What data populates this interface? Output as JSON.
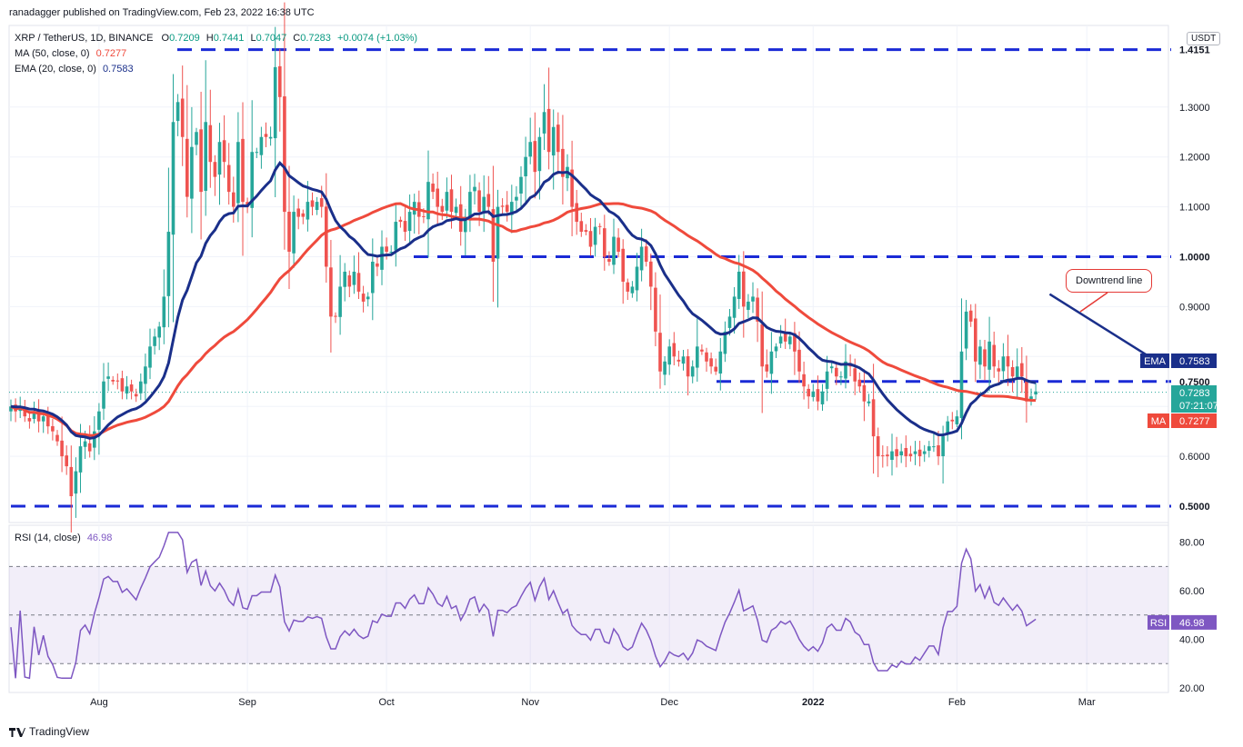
{
  "publisher": "ranadagger published on TradingView.com, Feb 23, 2022 16:38 UTC",
  "footer_brand": "TradingView",
  "symbol_line": {
    "name": "XRP / TetherUS, 1D, BINANCE",
    "o_label": "O",
    "o": "0.7209",
    "h_label": "H",
    "h": "0.7441",
    "l_label": "L",
    "l": "0.7047",
    "c_label": "C",
    "c": "0.7283",
    "change": "+0.0074 (+1.03%)"
  },
  "ma_line": {
    "label": "MA (50, close, 0)",
    "value": "0.7277"
  },
  "ema_line": {
    "label": "EMA (20, close, 0)",
    "value": "0.7583"
  },
  "rsi_line": {
    "label": "RSI (14, close)",
    "value": "46.98"
  },
  "currency": "USDT",
  "annotation": "Downtrend line",
  "colors": {
    "up": "#26a69a",
    "down": "#ef5350",
    "ema": "#1a2f8a",
    "ma": "#ef4a3c",
    "rsi": "#7e57c2",
    "level": "#1a2ad6"
  },
  "chart_data": {
    "type": "candlestick",
    "title": "XRP / TetherUS, 1D, BINANCE",
    "price_axis": {
      "range": [
        0.47,
        1.43
      ],
      "ticks": [
        0.6,
        0.7,
        0.8,
        0.9,
        1.0,
        1.1,
        1.2,
        1.3
      ],
      "tick_labels": [
        "0.6000",
        "0.7000",
        "0.8000",
        "0.9000",
        "1.0000",
        "1.1000",
        "1.2000",
        "1.3000"
      ]
    },
    "time_axis": {
      "labels": [
        "Aug",
        "Sep",
        "Oct",
        "Nov",
        "Dec",
        "2022",
        "Feb",
        "Mar"
      ],
      "label_day_index": [
        19,
        51,
        81,
        112,
        142,
        173,
        204,
        232
      ]
    },
    "horizontal_levels": [
      {
        "value": 1.4151,
        "label": "1.4151"
      },
      {
        "value": 1.0,
        "label": "1.0000"
      },
      {
        "value": 0.75,
        "label": "0.7500"
      },
      {
        "value": 0.5,
        "label": "0.5000"
      }
    ],
    "price_tags": [
      {
        "name": "EMA",
        "value": 0.7583,
        "label": "0.7583"
      },
      {
        "name": "Close",
        "value": 0.7283,
        "label": "0.7283",
        "sub": "07:21:07"
      },
      {
        "name": "MA",
        "value": 0.7277,
        "label": "0.7277"
      }
    ],
    "downtrend_line": {
      "from": {
        "day": 224,
        "value": 0.925
      },
      "to": {
        "day": 248,
        "value": 0.785
      }
    },
    "closes": [
      0.7,
      0.69,
      0.7,
      0.68,
      0.67,
      0.69,
      0.67,
      0.68,
      0.66,
      0.65,
      0.63,
      0.6,
      0.58,
      0.52,
      0.57,
      0.62,
      0.63,
      0.61,
      0.65,
      0.69,
      0.75,
      0.76,
      0.75,
      0.75,
      0.73,
      0.74,
      0.73,
      0.72,
      0.75,
      0.78,
      0.82,
      0.84,
      0.86,
      0.92,
      1.05,
      1.27,
      1.31,
      1.24,
      1.12,
      1.22,
      1.25,
      1.13,
      1.27,
      1.19,
      1.16,
      1.23,
      1.19,
      1.13,
      1.1,
      1.23,
      1.11,
      1.1,
      1.21,
      1.21,
      1.24,
      1.24,
      1.24,
      1.38,
      1.32,
      1.09,
      1.01,
      1.09,
      1.08,
      1.08,
      1.11,
      1.1,
      1.11,
      1.1,
      0.98,
      0.88,
      0.88,
      0.94,
      0.97,
      0.94,
      0.97,
      0.93,
      0.91,
      0.92,
      0.99,
      0.98,
      1.02,
      1.01,
      1.01,
      1.07,
      1.07,
      1.05,
      1.09,
      1.11,
      1.08,
      1.08,
      1.15,
      1.13,
      1.1,
      1.09,
      1.13,
      1.09,
      1.1,
      1.05,
      1.08,
      1.13,
      1.14,
      1.09,
      1.12,
      1.1,
      0.99,
      1.1,
      1.1,
      1.09,
      1.11,
      1.12,
      1.16,
      1.2,
      1.23,
      1.17,
      1.24,
      1.29,
      1.21,
      1.26,
      1.21,
      1.16,
      1.18,
      1.1,
      1.07,
      1.05,
      1.05,
      1.02,
      1.06,
      1.06,
      1.0,
      0.99,
      1.04,
      1.01,
      0.95,
      0.93,
      0.94,
      0.98,
      1.02,
      0.99,
      0.94,
      0.85,
      0.77,
      0.79,
      0.82,
      0.8,
      0.79,
      0.8,
      0.76,
      0.78,
      0.82,
      0.81,
      0.79,
      0.78,
      0.77,
      0.81,
      0.85,
      0.88,
      0.92,
      0.97,
      0.9,
      0.91,
      0.92,
      0.87,
      0.78,
      0.77,
      0.81,
      0.82,
      0.84,
      0.83,
      0.84,
      0.81,
      0.77,
      0.74,
      0.72,
      0.73,
      0.71,
      0.73,
      0.77,
      0.78,
      0.76,
      0.76,
      0.79,
      0.78,
      0.75,
      0.74,
      0.71,
      0.71,
      0.64,
      0.6,
      0.6,
      0.6,
      0.61,
      0.6,
      0.61,
      0.6,
      0.6,
      0.61,
      0.6,
      0.61,
      0.62,
      0.62,
      0.6,
      0.64,
      0.67,
      0.67,
      0.68,
      0.81,
      0.89,
      0.87,
      0.79,
      0.82,
      0.78,
      0.83,
      0.78,
      0.77,
      0.8,
      0.78,
      0.76,
      0.78,
      0.76,
      0.71,
      0.72,
      0.73
    ]
  }
}
